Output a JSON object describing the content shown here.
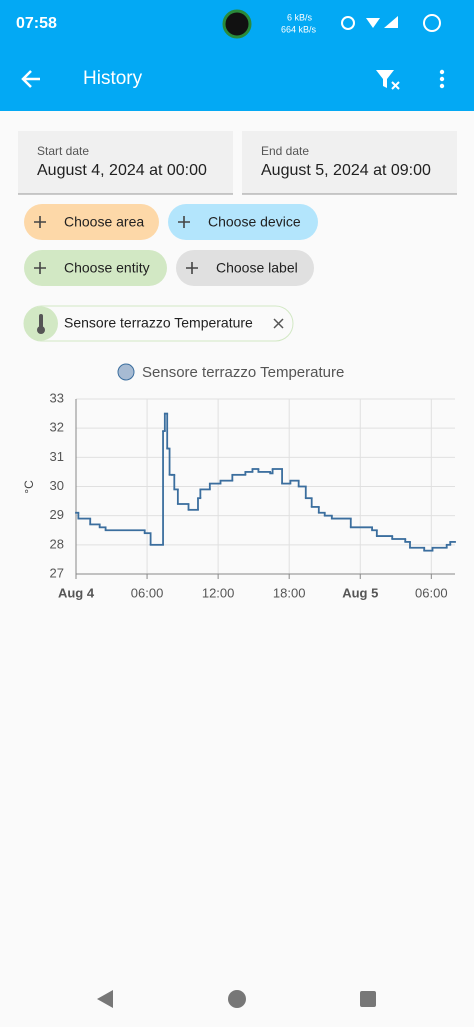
{
  "status_bar": {
    "time": "07:58",
    "net_up": "6 kB/s",
    "net_down": "664 kB/s"
  },
  "app_bar": {
    "title": "History"
  },
  "date_range": {
    "start_label": "Start date",
    "start_value": "August 4, 2024 at 00:00",
    "end_label": "End date",
    "end_value": "August 5, 2024 at 09:00"
  },
  "filters": [
    "Choose area",
    "Choose device",
    "Choose entity",
    "Choose label"
  ],
  "selected_entity": "Sensore terrazzo Temperature",
  "chart_data": {
    "type": "line",
    "step": true,
    "y_label": "°C",
    "grid": true,
    "xlim": [
      0,
      32
    ],
    "ylim": [
      27,
      33
    ],
    "xticks": [
      {
        "value": 0,
        "label": "Aug 4"
      },
      {
        "value": 6,
        "label": "06:00"
      },
      {
        "value": 12,
        "label": "12:00"
      },
      {
        "value": 18,
        "label": "18:00"
      },
      {
        "value": 24,
        "label": "Aug 5"
      },
      {
        "value": 30,
        "label": "06:00"
      }
    ],
    "yticks": [
      27,
      28,
      29,
      30,
      31,
      32,
      33
    ],
    "x": [
      0,
      0.2,
      1.2,
      2.0,
      2.5,
      5.8,
      6.3,
      7.35,
      7.5,
      7.7,
      7.8,
      7.9,
      8.1,
      8.3,
      8.6,
      9.5,
      10.3,
      10.5,
      11.3,
      12.2,
      13.2,
      14.3,
      14.9,
      15.4,
      16.4,
      16.6,
      17.4,
      18.1,
      18.8,
      19.4,
      19.9,
      20.5,
      21.0,
      21.6,
      23.2,
      25.0,
      25.4,
      26.7,
      27.8,
      28.2,
      29.4,
      30.1,
      31.3,
      31.6
    ],
    "series": [
      {
        "name": "Sensore terrazzo Temperature",
        "color": "#3b6e9e",
        "values": [
          29.1,
          28.9,
          28.7,
          28.6,
          28.5,
          28.4,
          28.0,
          31.9,
          32.5,
          31.3,
          31.3,
          30.4,
          30.4,
          29.9,
          29.4,
          29.2,
          29.6,
          29.9,
          30.1,
          30.2,
          30.4,
          30.5,
          30.6,
          30.5,
          30.45,
          30.6,
          30.1,
          30.2,
          30.0,
          29.6,
          29.3,
          29.1,
          29.0,
          28.9,
          28.6,
          28.5,
          28.3,
          28.2,
          28.1,
          27.9,
          27.8,
          27.9,
          28.0,
          28.1
        ]
      }
    ]
  }
}
